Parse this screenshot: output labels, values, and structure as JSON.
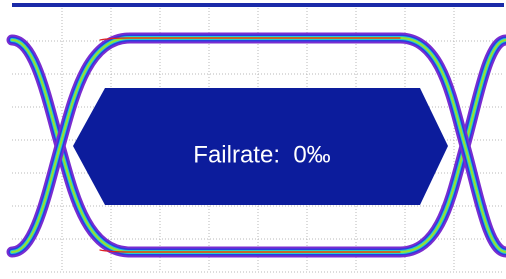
{
  "mask_label": "Failrate:  0‰"
}
